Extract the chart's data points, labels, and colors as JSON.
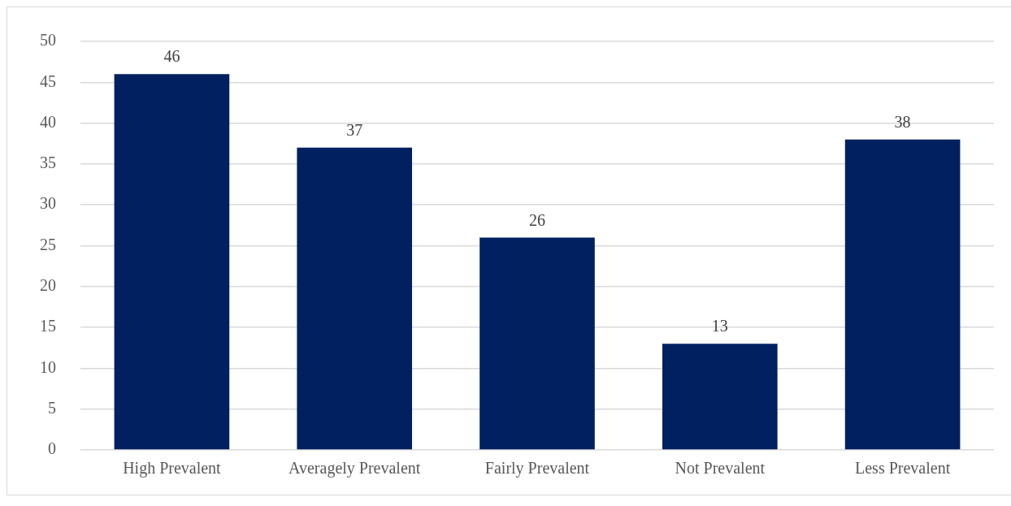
{
  "chart_data": {
    "type": "bar",
    "categories": [
      "High Prevalent",
      "Averagely Prevalent",
      "Fairly Prevalent",
      "Not Prevalent",
      "Less Prevalent"
    ],
    "values": [
      46,
      37,
      26,
      13,
      38
    ],
    "color": "#002060",
    "ylim": [
      0,
      50
    ],
    "yticks": [
      0,
      5,
      10,
      15,
      20,
      25,
      30,
      35,
      40,
      45,
      50
    ],
    "grid": "y",
    "data_labels": true,
    "legend": false
  }
}
